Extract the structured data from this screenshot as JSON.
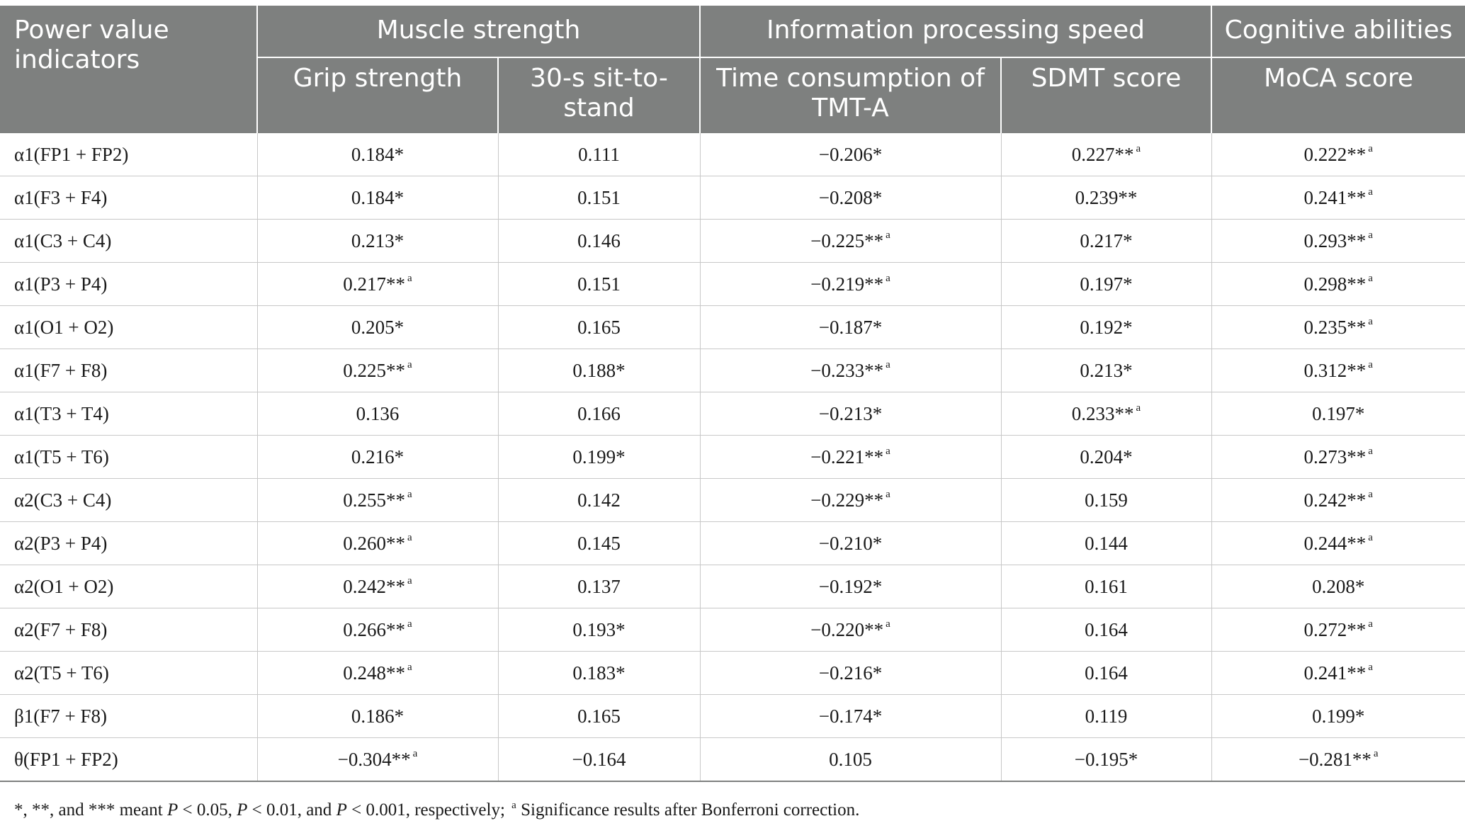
{
  "table": {
    "row_header": "Power value indicators",
    "groups": [
      {
        "label": "Muscle strength",
        "span": 2
      },
      {
        "label": "Information processing speed",
        "span": 2
      },
      {
        "label": "Cognitive abilities",
        "span": 1
      }
    ],
    "columns": [
      "Grip strength",
      "30-s sit-to-stand",
      "Time consumption of TMT-A",
      "SDMT score",
      "MoCA score"
    ],
    "rows": [
      {
        "label": "α1(FP1 + FP2)",
        "cells": [
          {
            "v": "0.184*",
            "a": false
          },
          {
            "v": "0.111",
            "a": false
          },
          {
            "v": "−0.206*",
            "a": false
          },
          {
            "v": "0.227**",
            "a": true
          },
          {
            "v": "0.222**",
            "a": true
          }
        ]
      },
      {
        "label": "α1(F3 + F4)",
        "cells": [
          {
            "v": "0.184*",
            "a": false
          },
          {
            "v": "0.151",
            "a": false
          },
          {
            "v": "−0.208*",
            "a": false
          },
          {
            "v": "0.239**",
            "a": false
          },
          {
            "v": "0.241**",
            "a": true
          }
        ]
      },
      {
        "label": "α1(C3 + C4)",
        "cells": [
          {
            "v": "0.213*",
            "a": false
          },
          {
            "v": "0.146",
            "a": false
          },
          {
            "v": "−0.225**",
            "a": true
          },
          {
            "v": "0.217*",
            "a": false
          },
          {
            "v": "0.293**",
            "a": true
          }
        ]
      },
      {
        "label": "α1(P3 + P4)",
        "cells": [
          {
            "v": "0.217**",
            "a": true
          },
          {
            "v": "0.151",
            "a": false
          },
          {
            "v": "−0.219**",
            "a": true
          },
          {
            "v": "0.197*",
            "a": false
          },
          {
            "v": "0.298**",
            "a": true
          }
        ]
      },
      {
        "label": "α1(O1 + O2)",
        "cells": [
          {
            "v": "0.205*",
            "a": false
          },
          {
            "v": "0.165",
            "a": false
          },
          {
            "v": "−0.187*",
            "a": false
          },
          {
            "v": "0.192*",
            "a": false
          },
          {
            "v": "0.235**",
            "a": true
          }
        ]
      },
      {
        "label": "α1(F7 + F8)",
        "cells": [
          {
            "v": "0.225**",
            "a": true
          },
          {
            "v": "0.188*",
            "a": false
          },
          {
            "v": "−0.233**",
            "a": true
          },
          {
            "v": "0.213*",
            "a": false
          },
          {
            "v": "0.312**",
            "a": true
          }
        ]
      },
      {
        "label": "α1(T3 + T4)",
        "cells": [
          {
            "v": "0.136",
            "a": false
          },
          {
            "v": "0.166",
            "a": false
          },
          {
            "v": "−0.213*",
            "a": false
          },
          {
            "v": "0.233**",
            "a": true
          },
          {
            "v": "0.197*",
            "a": false
          }
        ]
      },
      {
        "label": "α1(T5 + T6)",
        "cells": [
          {
            "v": "0.216*",
            "a": false
          },
          {
            "v": "0.199*",
            "a": false
          },
          {
            "v": "−0.221**",
            "a": true
          },
          {
            "v": "0.204*",
            "a": false
          },
          {
            "v": "0.273**",
            "a": true
          }
        ]
      },
      {
        "label": "α2(C3 + C4)",
        "cells": [
          {
            "v": "0.255**",
            "a": true
          },
          {
            "v": "0.142",
            "a": false
          },
          {
            "v": "−0.229**",
            "a": true
          },
          {
            "v": "0.159",
            "a": false
          },
          {
            "v": "0.242**",
            "a": true
          }
        ]
      },
      {
        "label": "α2(P3 + P4)",
        "cells": [
          {
            "v": "0.260**",
            "a": true
          },
          {
            "v": "0.145",
            "a": false
          },
          {
            "v": "−0.210*",
            "a": false
          },
          {
            "v": "0.144",
            "a": false
          },
          {
            "v": "0.244**",
            "a": true
          }
        ]
      },
      {
        "label": "α2(O1 + O2)",
        "cells": [
          {
            "v": "0.242**",
            "a": true
          },
          {
            "v": "0.137",
            "a": false
          },
          {
            "v": "−0.192*",
            "a": false
          },
          {
            "v": "0.161",
            "a": false
          },
          {
            "v": "0.208*",
            "a": false
          }
        ]
      },
      {
        "label": "α2(F7 + F8)",
        "cells": [
          {
            "v": "0.266**",
            "a": true
          },
          {
            "v": "0.193*",
            "a": false
          },
          {
            "v": "−0.220**",
            "a": true
          },
          {
            "v": "0.164",
            "a": false
          },
          {
            "v": "0.272**",
            "a": true
          }
        ]
      },
      {
        "label": "α2(T5 + T6)",
        "cells": [
          {
            "v": "0.248**",
            "a": true
          },
          {
            "v": "0.183*",
            "a": false
          },
          {
            "v": "−0.216*",
            "a": false
          },
          {
            "v": "0.164",
            "a": false
          },
          {
            "v": "0.241**",
            "a": true
          }
        ]
      },
      {
        "label": "β1(F7 + F8)",
        "cells": [
          {
            "v": "0.186*",
            "a": false
          },
          {
            "v": "0.165",
            "a": false
          },
          {
            "v": "−0.174*",
            "a": false
          },
          {
            "v": "0.119",
            "a": false
          },
          {
            "v": "0.199*",
            "a": false
          }
        ]
      },
      {
        "label": "θ(FP1 + FP2)",
        "cells": [
          {
            "v": "−0.304**",
            "a": true
          },
          {
            "v": "−0.164",
            "a": false
          },
          {
            "v": "0.105",
            "a": false
          },
          {
            "v": "−0.195*",
            "a": false
          },
          {
            "v": "−0.281**",
            "a": true
          }
        ]
      }
    ],
    "superscript_marker": "a"
  },
  "footnote": {
    "part1": "*, **, and *** meant ",
    "p1": "P",
    "t1": " < 0.05, ",
    "p2": "P",
    "t2": " < 0.01, and ",
    "p3": "P",
    "t3": " < 0.001, respectively; ",
    "marker": "a",
    "tail": " Significance results after Bonferroni correction."
  }
}
